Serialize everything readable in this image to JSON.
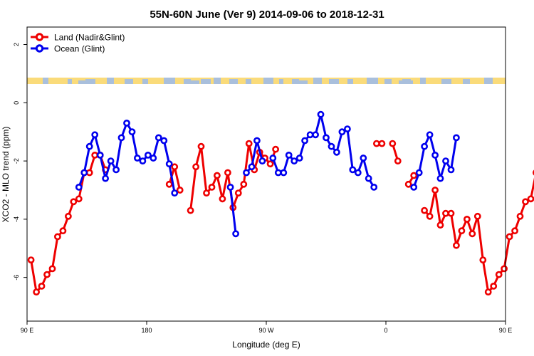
{
  "chart_data": {
    "type": "line",
    "title": "55N-60N June (Ver 9)   2014-09-06 to 2018-12-31",
    "xlabel": "Longitude (deg E)",
    "ylabel": "XCO2 - MLO trend (ppm)",
    "xlim": [
      90,
      450
    ],
    "ylim": [
      -7.5,
      2.6
    ],
    "x_ticks": [
      {
        "value": 90,
        "label": "90 E"
      },
      {
        "value": 180,
        "label": "180"
      },
      {
        "value": 270,
        "label": "90 W"
      },
      {
        "value": 360,
        "label": "0"
      },
      {
        "value": 450,
        "label": "90 E"
      },
      {
        "value": 540,
        "label": "180"
      }
    ],
    "y_ticks": [
      {
        "value": 2,
        "label": "2"
      },
      {
        "value": 0,
        "label": "0"
      },
      {
        "value": -2,
        "label": "-2"
      },
      {
        "value": -4,
        "label": "-4"
      },
      {
        "value": -6,
        "label": "-6"
      }
    ],
    "legend_position": "top-left",
    "land_ocean_strip": {
      "colors": {
        "land": "#fadb7a",
        "ocean": "#a9bfdc"
      }
    },
    "series": [
      {
        "name": "Land (Nadir&Glint)",
        "color": "#ee0000",
        "values": [
          [
            93,
            -5.4
          ],
          [
            97,
            -6.5
          ],
          [
            101,
            -6.3
          ],
          [
            105,
            -5.9
          ],
          [
            109,
            -5.7
          ],
          [
            113,
            -4.6
          ],
          [
            117,
            -4.4
          ],
          [
            121,
            -3.9
          ],
          [
            125,
            -3.4
          ],
          [
            129,
            -3.3
          ],
          [
            133,
            -2.4
          ],
          [
            137,
            -2.4
          ],
          [
            141,
            -1.8
          ],
          [
            145,
            -1.8
          ],
          [
            149,
            -2.3
          ],
          null,
          [
            197,
            -2.8
          ],
          [
            201,
            -2.2
          ],
          [
            205,
            -3.0
          ],
          null,
          [
            213,
            -3.7
          ],
          [
            217,
            -2.2
          ],
          [
            221,
            -1.5
          ],
          [
            225,
            -3.1
          ],
          [
            229,
            -2.9
          ],
          [
            233,
            -2.5
          ],
          [
            237,
            -3.3
          ],
          [
            241,
            -2.4
          ],
          [
            245,
            -3.6
          ],
          [
            249,
            -3.1
          ],
          [
            253,
            -2.8
          ],
          [
            257,
            -1.4
          ],
          [
            261,
            -2.3
          ],
          [
            265,
            -1.7
          ],
          [
            269,
            -1.9
          ],
          [
            273,
            -2.1
          ],
          [
            277,
            -1.6
          ],
          null,
          [
            353,
            -1.4
          ],
          [
            357,
            -1.4
          ],
          null,
          [
            365,
            -1.4
          ],
          [
            369,
            -2.0
          ],
          null,
          [
            377,
            -2.8
          ],
          [
            381,
            -2.5
          ],
          null,
          [
            389,
            -3.7
          ],
          [
            393,
            -3.9
          ],
          [
            397,
            -3.0
          ],
          [
            401,
            -4.2
          ],
          [
            405,
            -3.8
          ],
          [
            409,
            -3.8
          ],
          [
            413,
            -4.9
          ],
          [
            417,
            -4.4
          ],
          [
            421,
            -4.0
          ],
          [
            425,
            -4.5
          ],
          [
            429,
            -3.9
          ],
          [
            433,
            -5.4
          ],
          [
            437,
            -6.5
          ],
          [
            441,
            -6.3
          ],
          [
            445,
            -5.9
          ],
          [
            449,
            -5.7
          ],
          [
            453,
            -4.6
          ],
          [
            457,
            -4.4
          ],
          [
            461,
            -3.9
          ],
          [
            465,
            -3.4
          ],
          [
            469,
            -3.3
          ],
          [
            473,
            -2.4
          ],
          [
            477,
            -2.4
          ],
          [
            481,
            -1.8
          ],
          [
            485,
            -1.8
          ],
          [
            489,
            -2.3
          ]
        ]
      },
      {
        "name": "Ocean (Glint)",
        "color": "#0000ee",
        "values": [
          [
            129,
            -2.9
          ],
          [
            133,
            -2.4
          ],
          [
            137,
            -1.5
          ],
          [
            141,
            -1.1
          ],
          [
            145,
            -1.8
          ],
          [
            149,
            -2.6
          ],
          [
            153,
            -2.0
          ],
          [
            157,
            -2.3
          ],
          [
            161,
            -1.2
          ],
          [
            165,
            -0.7
          ],
          [
            169,
            -1.0
          ],
          [
            173,
            -1.9
          ],
          [
            177,
            -2.0
          ],
          [
            181,
            -1.8
          ],
          [
            185,
            -1.9
          ],
          [
            189,
            -1.2
          ],
          [
            193,
            -1.3
          ],
          [
            197,
            -2.1
          ],
          [
            201,
            -3.1
          ],
          null,
          [
            243,
            -2.9
          ],
          [
            247,
            -4.5
          ],
          null,
          [
            255,
            -2.4
          ],
          [
            259,
            -2.2
          ],
          [
            263,
            -1.3
          ],
          [
            267,
            -2.0
          ],
          null,
          [
            275,
            -1.9
          ],
          [
            279,
            -2.4
          ],
          [
            283,
            -2.4
          ],
          [
            287,
            -1.8
          ],
          [
            291,
            -2.0
          ],
          [
            295,
            -1.9
          ],
          [
            299,
            -1.3
          ],
          [
            303,
            -1.1
          ],
          [
            307,
            -1.1
          ],
          [
            311,
            -0.4
          ],
          [
            315,
            -1.2
          ],
          [
            319,
            -1.5
          ],
          [
            323,
            -1.7
          ],
          [
            327,
            -1.0
          ],
          [
            331,
            -0.9
          ],
          [
            335,
            -2.3
          ],
          [
            339,
            -2.4
          ],
          [
            343,
            -1.9
          ],
          [
            347,
            -2.6
          ],
          [
            351,
            -2.9
          ],
          null,
          [
            381,
            -2.9
          ],
          [
            385,
            -2.4
          ],
          [
            389,
            -1.5
          ],
          [
            393,
            -1.1
          ],
          [
            397,
            -1.8
          ],
          [
            401,
            -2.6
          ],
          [
            405,
            -2.0
          ],
          [
            409,
            -2.3
          ],
          [
            413,
            -1.2
          ]
        ]
      }
    ]
  }
}
